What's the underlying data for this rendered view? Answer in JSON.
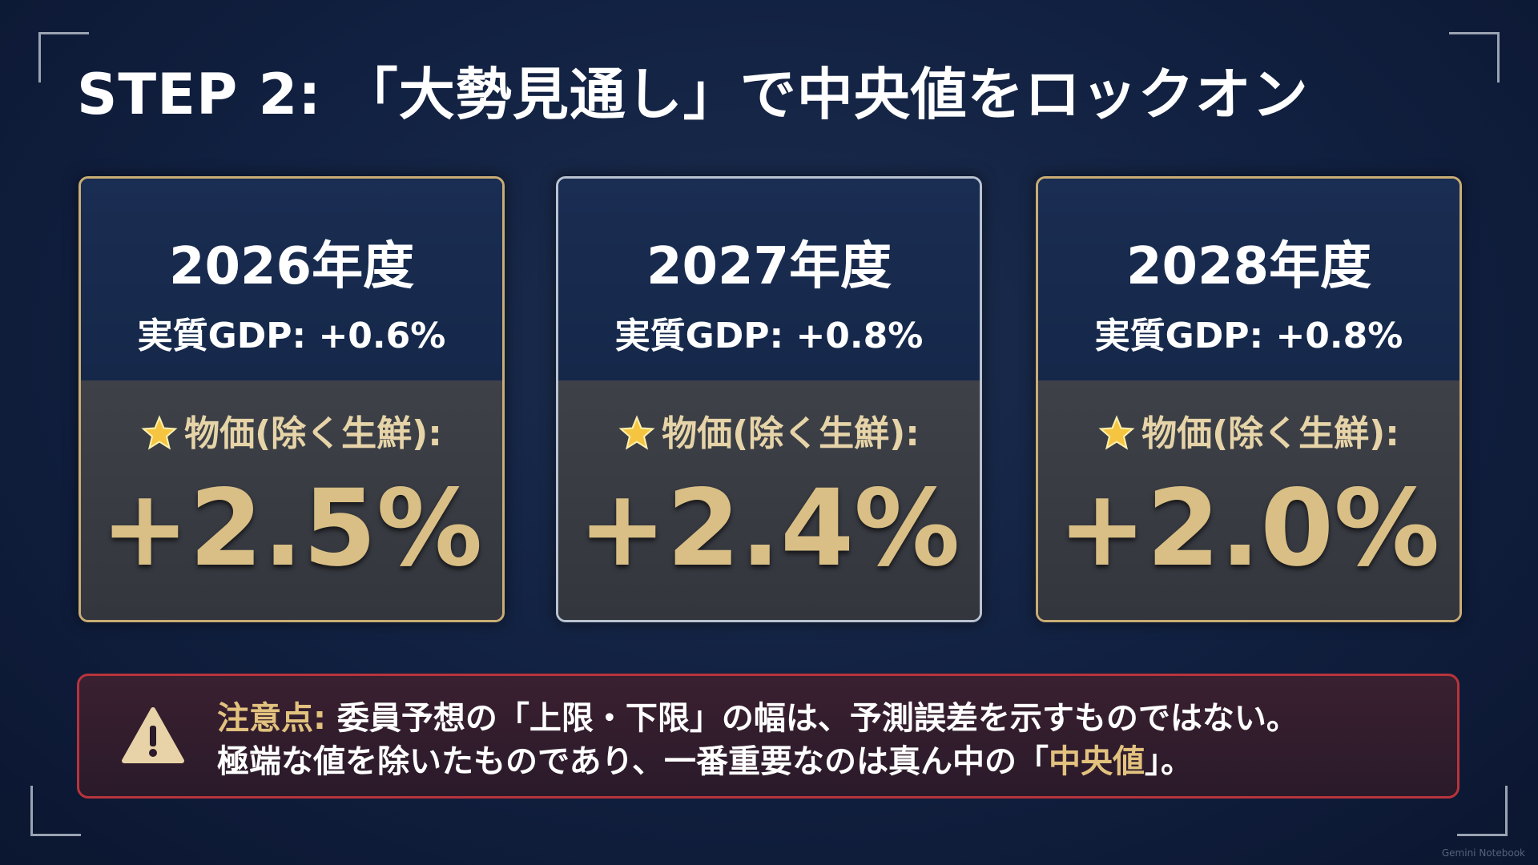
{
  "title": "STEP 2: 「大勢見通し」で中央値をロックオン",
  "cards": [
    {
      "year": "2026年度",
      "gdp": "実質GDP: +0.6%",
      "label": "物価(除く生鮮):",
      "value": "+2.5%"
    },
    {
      "year": "2027年度",
      "gdp": "実質GDP: +0.8%",
      "label": "物価(除く生鮮):",
      "value": "+2.4%"
    },
    {
      "year": "2028年度",
      "gdp": "実質GDP: +0.8%",
      "label": "物価(除く生鮮):",
      "value": "+2.0%"
    }
  ],
  "note": {
    "label": "注意点:",
    "line1": " 委員予想の「上限・下限」の幅は、予測誤差を示すものではない。",
    "line2_before": "極端な値を除いたものであり、一番重要なのは真ん中の「",
    "line2_highlight": "中央値",
    "line2_after": "」。"
  },
  "watermark": "Gemini Notebook"
}
